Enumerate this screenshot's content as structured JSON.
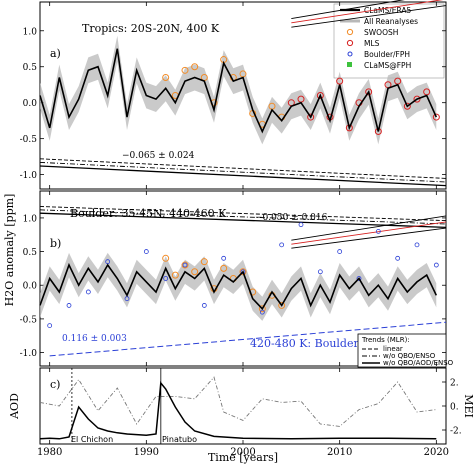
{
  "chart_data": [
    {
      "type": "line",
      "panel_label": "a)",
      "title": "Tropics: 20S-20N, 400 K",
      "ylim": [
        -1.2,
        1.4
      ],
      "xlim": [
        1979,
        2021
      ],
      "yticks": [
        -1.0,
        -0.5,
        0.0,
        0.5,
        1.0
      ],
      "trend_label": "−0.065 ± 0.024",
      "legend": [
        "CLaMS/ERA5",
        "All Reanalyses",
        "SWOOSH",
        "MLS",
        "Boulder/FPH",
        "CLaMS@FPH"
      ],
      "series": [
        {
          "name": "CLaMS/ERA5",
          "x": [
            1979,
            1980,
            1981,
            1982,
            1983,
            1984,
            1985,
            1986,
            1987,
            1988,
            1989,
            1990,
            1991,
            1992,
            1993,
            1994,
            1995,
            1996,
            1997,
            1998,
            1999,
            2000,
            2001,
            2002,
            2003,
            2004,
            2005,
            2006,
            2007,
            2008,
            2009,
            2010,
            2011,
            2012,
            2013,
            2014,
            2015,
            2016,
            2017,
            2018,
            2019,
            2020
          ],
          "values": [
            0.1,
            -0.35,
            0.35,
            -0.2,
            0.05,
            0.45,
            0.5,
            0.1,
            0.75,
            -0.2,
            0.45,
            0.1,
            0.05,
            0.2,
            0.0,
            0.3,
            0.35,
            0.3,
            -0.1,
            0.55,
            0.3,
            0.35,
            -0.1,
            -0.4,
            -0.1,
            -0.25,
            -0.05,
            0.0,
            -0.2,
            0.1,
            -0.25,
            0.25,
            -0.35,
            -0.05,
            0.15,
            -0.4,
            0.2,
            0.25,
            -0.05,
            0.05,
            0.1,
            -0.2
          ]
        },
        {
          "name": "SWOOSH",
          "x": [
            1992,
            1993,
            1994,
            1995,
            1996,
            1997,
            1998,
            1999,
            2000,
            2001,
            2002,
            2003,
            2004
          ],
          "values": [
            0.35,
            0.1,
            0.45,
            0.5,
            0.35,
            0.0,
            0.6,
            0.35,
            0.4,
            -0.15,
            -0.3,
            -0.05,
            -0.2
          ]
        },
        {
          "name": "MLS",
          "x": [
            2005,
            2006,
            2007,
            2008,
            2009,
            2010,
            2011,
            2012,
            2013,
            2014,
            2015,
            2016,
            2017,
            2018,
            2019,
            2020
          ],
          "values": [
            0.0,
            0.05,
            -0.2,
            0.1,
            -0.2,
            0.3,
            -0.35,
            0.0,
            0.15,
            -0.4,
            0.25,
            0.3,
            -0.05,
            0.05,
            0.15,
            -0.2
          ]
        }
      ]
    },
    {
      "type": "line",
      "panel_label": "b)",
      "title": "Boulder: 35-45N, 440-460 K",
      "ylim": [
        -1.2,
        1.4
      ],
      "xlim": [
        1979,
        2021
      ],
      "yticks": [
        -1.0,
        -0.5,
        0.0,
        0.5,
        1.0
      ],
      "trend_label": "−0.050 ± 0.016",
      "fph_trend_label": "0.116 ± 0.003",
      "fph_label": "420-480 K: Boulder/FPH",
      "trends_legend_title": "Trends (MLR):",
      "trends_legend": [
        "linear",
        "w/o QBO/ENSO",
        "w/o QBO/AOD/ENSO"
      ],
      "series": [
        {
          "name": "CLaMS/ERA5",
          "x": [
            1979,
            1980,
            1981,
            1982,
            1983,
            1984,
            1985,
            1986,
            1987,
            1988,
            1989,
            1990,
            1991,
            1992,
            1993,
            1994,
            1995,
            1996,
            1997,
            1998,
            1999,
            2000,
            2001,
            2002,
            2003,
            2004,
            2005,
            2006,
            2007,
            2008,
            2009,
            2010,
            2011,
            2012,
            2013,
            2014,
            2015,
            2016,
            2017,
            2018,
            2019,
            2020
          ],
          "values": [
            -0.3,
            0.1,
            -0.1,
            0.3,
            0.0,
            0.25,
            0.05,
            0.3,
            0.1,
            -0.15,
            0.2,
            0.05,
            -0.1,
            0.25,
            -0.05,
            0.2,
            0.1,
            0.25,
            -0.1,
            0.15,
            0.05,
            0.2,
            -0.2,
            -0.35,
            -0.1,
            -0.3,
            -0.05,
            0.1,
            -0.3,
            0.0,
            -0.25,
            0.15,
            -0.05,
            0.1,
            -0.15,
            0.0,
            -0.2,
            0.1,
            -0.1,
            0.05,
            0.15,
            -0.15
          ]
        },
        {
          "name": "SWOOSH",
          "x": [
            1992,
            1993,
            1994,
            1995,
            1996,
            1997,
            1998,
            1999,
            2000,
            2001,
            2002,
            2003,
            2004
          ],
          "values": [
            0.4,
            0.15,
            0.3,
            0.2,
            0.35,
            -0.05,
            0.25,
            0.1,
            0.2,
            -0.1,
            -0.35,
            -0.15,
            -0.3
          ]
        },
        {
          "name": "Boulder/FPH",
          "x": [
            1980,
            1982,
            1984,
            1986,
            1988,
            1990,
            1992,
            1994,
            1996,
            1998,
            2000,
            2002,
            2004,
            2006,
            2008,
            2010,
            2012,
            2014,
            2016,
            2018,
            2020
          ],
          "values": [
            -0.6,
            -0.3,
            -0.1,
            0.35,
            -0.2,
            0.5,
            0.1,
            0.3,
            -0.3,
            0.4,
            0.2,
            -0.4,
            0.6,
            0.9,
            0.2,
            0.5,
            0.1,
            0.8,
            0.4,
            0.6,
            0.3
          ]
        }
      ]
    },
    {
      "type": "line",
      "panel_label": "c)",
      "ylabel_left": "AOD",
      "ylabel_right": "MEI",
      "xlim": [
        1979,
        2021
      ],
      "right_yticks": [
        "2.",
        "0.",
        "-2."
      ],
      "annotations": [
        "El Chichon",
        "Pinatubo"
      ],
      "series": [
        {
          "name": "AOD",
          "x": [
            1979,
            1980,
            1981,
            1982,
            1982.5,
            1983,
            1984,
            1985,
            1986,
            1987,
            1988,
            1990,
            1991,
            1991.5,
            1992,
            1993,
            1994,
            1995,
            1997,
            2000,
            2005,
            2010,
            2015,
            2020
          ],
          "values": [
            0.02,
            0.03,
            0.02,
            0.05,
            0.3,
            0.55,
            0.35,
            0.2,
            0.15,
            0.12,
            0.1,
            0.08,
            0.1,
            0.95,
            0.85,
            0.55,
            0.3,
            0.15,
            0.06,
            0.03,
            0.02,
            0.03,
            0.03,
            0.02
          ]
        },
        {
          "name": "MEI",
          "x": [
            1979,
            1981,
            1983,
            1985,
            1987,
            1989,
            1991,
            1993,
            1995,
            1997,
            1998,
            2000,
            2002,
            2004,
            2006,
            2008,
            2010,
            2012,
            2014,
            2016,
            2018,
            2020
          ],
          "values": [
            0.3,
            0.0,
            2.2,
            -0.4,
            1.5,
            -1.5,
            0.8,
            0.8,
            0.6,
            2.4,
            -0.5,
            -1.2,
            0.6,
            0.3,
            0.4,
            -1.5,
            -1.7,
            -0.3,
            0.2,
            2.0,
            -0.5,
            -0.3
          ]
        }
      ]
    }
  ],
  "axes": {
    "ylabel": "H2O anomaly [ppm]",
    "xlabel": "Time [years]",
    "xticks": [
      "1980",
      "1990",
      "2000",
      "2010",
      "2020"
    ]
  },
  "colors": {
    "clams": "#000000",
    "reanalyses": "#b8b8b8",
    "swoosh": "#f28c28",
    "mls": "#d62020",
    "fph": "#2a3fd6",
    "clams_fph": "#3ec23e",
    "trend_red": "#d62020"
  }
}
